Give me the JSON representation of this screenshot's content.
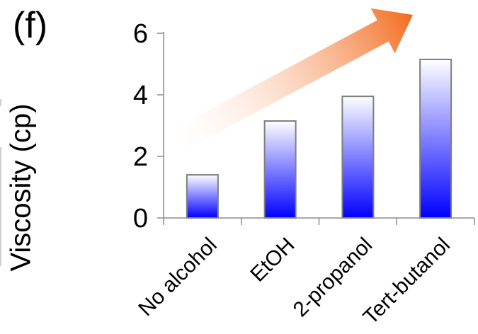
{
  "panel_label": "(f)",
  "chart_data": {
    "type": "bar",
    "title": "",
    "xlabel": "",
    "ylabel": "Viscosity (cp)",
    "categories": [
      "No alcohol",
      "EtOH",
      "2-propanol",
      "Tert-butanol"
    ],
    "values": [
      1.4,
      3.15,
      3.95,
      5.15
    ],
    "ylim": [
      0,
      6
    ],
    "yticks": [
      0,
      2,
      4,
      6
    ],
    "grid": false,
    "legend": "none",
    "bar_gradient": [
      "#ffffff",
      "#0000ff"
    ],
    "bar_edge_color": "#7f7f7f",
    "arrow_gradient": [
      "#ffffff",
      "#f26b1d"
    ]
  }
}
